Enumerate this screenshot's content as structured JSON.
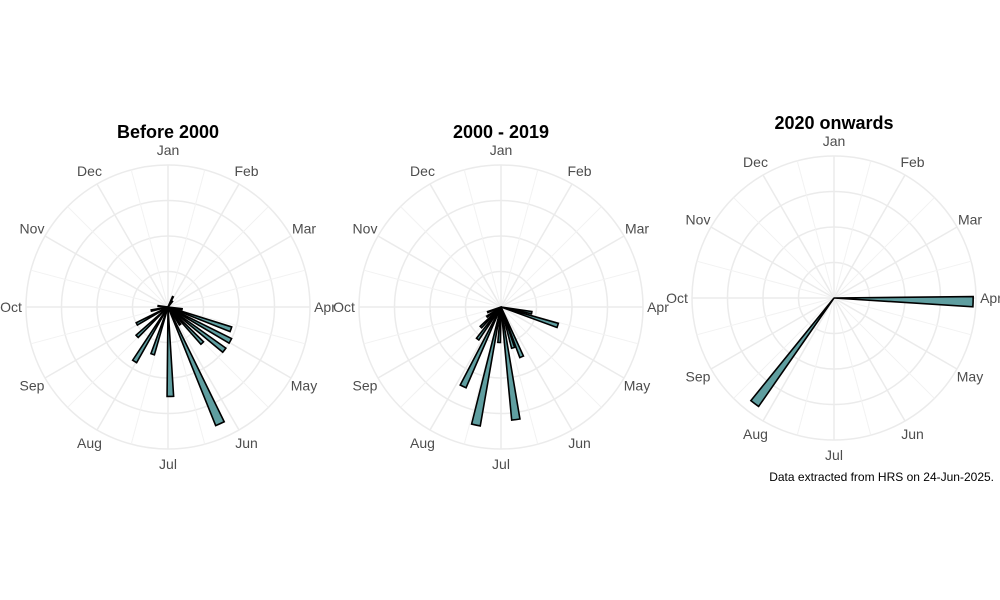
{
  "caption": "Data extracted from HRS on 24-Jun-2025.",
  "chart_data": [
    {
      "type": "bar",
      "coordinates": "polar",
      "title": "Before 2000",
      "categories": [
        "Jan",
        "Feb",
        "Mar",
        "Apr",
        "May",
        "Jun",
        "Jul",
        "Aug",
        "Sep",
        "Oct",
        "Nov",
        "Dec"
      ],
      "bar_color": "#5f9ea0",
      "bars": [
        {
          "month": 0.85,
          "value": 0.08
        },
        {
          "month": 1.25,
          "value": 0.05
        },
        {
          "month": 3.3,
          "value": 0.1
        },
        {
          "month": 3.65,
          "value": 0.47
        },
        {
          "month": 3.95,
          "value": 0.5
        },
        {
          "month": 4.25,
          "value": 0.5
        },
        {
          "month": 4.55,
          "value": 0.35
        },
        {
          "month": 4.85,
          "value": 0.15
        },
        {
          "month": 5.2,
          "value": 0.9
        },
        {
          "month": 5.95,
          "value": 0.63
        },
        {
          "month": 6.6,
          "value": 0.35
        },
        {
          "month": 7.05,
          "value": 0.45
        },
        {
          "month": 7.55,
          "value": 0.3
        },
        {
          "month": 8.05,
          "value": 0.25
        },
        {
          "month": 8.6,
          "value": 0.12
        },
        {
          "month": 9.2,
          "value": 0.07
        }
      ]
    },
    {
      "type": "bar",
      "coordinates": "polar",
      "title": "2000 - 2019",
      "categories": [
        "Jan",
        "Feb",
        "Mar",
        "Apr",
        "May",
        "Jun",
        "Jul",
        "Aug",
        "Sep",
        "Oct",
        "Nov",
        "Dec"
      ],
      "bar_color": "#5f9ea0",
      "bars": [
        {
          "month": 3.35,
          "value": 0.22
        },
        {
          "month": 3.6,
          "value": 0.42
        },
        {
          "month": 5.25,
          "value": 0.38
        },
        {
          "month": 5.45,
          "value": 0.3
        },
        {
          "month": 5.75,
          "value": 0.8
        },
        {
          "month": 6.1,
          "value": 0.25
        },
        {
          "month": 6.4,
          "value": 0.85
        },
        {
          "month": 6.85,
          "value": 0.62
        },
        {
          "month": 7.2,
          "value": 0.28
        },
        {
          "month": 7.5,
          "value": 0.2
        },
        {
          "month": 7.85,
          "value": 0.12
        },
        {
          "month": 8.3,
          "value": 0.1
        }
      ]
    },
    {
      "type": "bar",
      "coordinates": "polar",
      "title": "2020 onwards",
      "categories": [
        "Jan",
        "Feb",
        "Mar",
        "Apr",
        "May",
        "Jun",
        "Jul",
        "Aug",
        "Sep",
        "Oct",
        "Nov",
        "Dec"
      ],
      "bar_color": "#5f9ea0",
      "bars": [
        {
          "month": 3.05,
          "value": 0.98
        },
        {
          "month": 7.23,
          "value": 0.93
        }
      ]
    }
  ]
}
